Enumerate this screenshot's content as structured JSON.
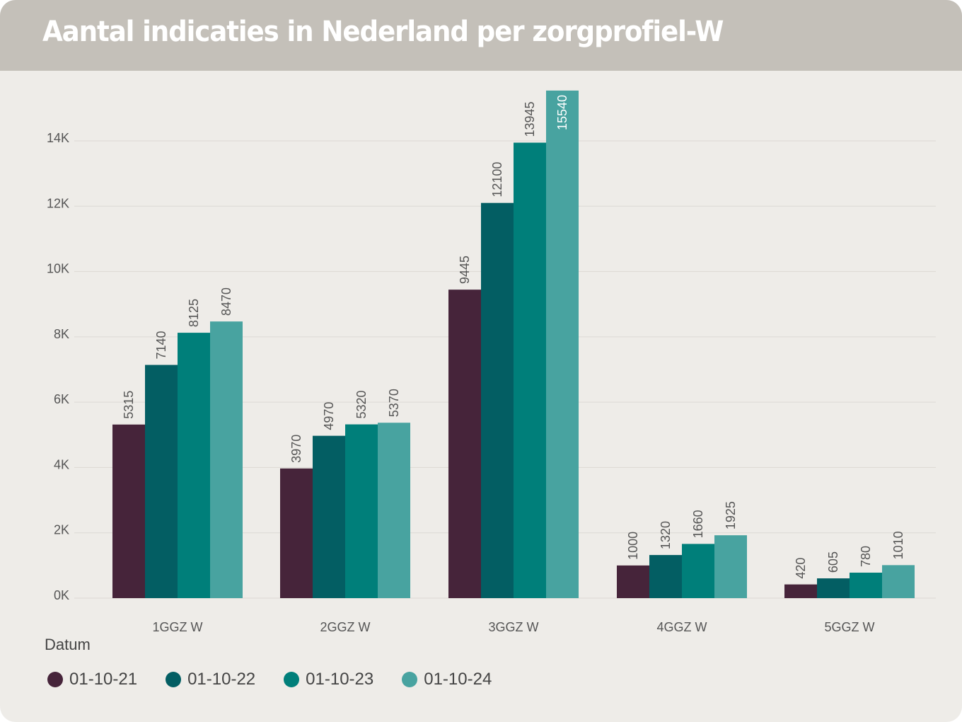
{
  "chart_data": {
    "type": "bar",
    "title": "Aantal indicaties in Nederland per zorgprofiel-W",
    "xlabel": "",
    "ylabel": "",
    "categories": [
      "1GGZ W",
      "2GGZ W",
      "3GGZ W",
      "4GGZ W",
      "5GGZ W"
    ],
    "series": [
      {
        "name": "01-10-21",
        "color": "#46243a",
        "values": [
          5315,
          3970,
          9445,
          1000,
          420
        ]
      },
      {
        "name": "01-10-22",
        "color": "#035e63",
        "values": [
          7140,
          4970,
          12100,
          1320,
          605
        ]
      },
      {
        "name": "01-10-23",
        "color": "#007f7a",
        "values": [
          8125,
          5320,
          13945,
          1660,
          780
        ]
      },
      {
        "name": "01-10-24",
        "color": "#48a3a0",
        "values": [
          8470,
          5370,
          15540,
          1925,
          1010
        ]
      }
    ],
    "ylim": [
      0,
      15540
    ],
    "yticks": [
      0,
      2000,
      4000,
      6000,
      8000,
      10000,
      12000,
      14000
    ],
    "ytick_labels": [
      "0K",
      "2K",
      "4K",
      "6K",
      "8K",
      "10K",
      "12K",
      "14K"
    ],
    "grid": true,
    "data_labels": "rotated-vertical",
    "legend": {
      "title": "Datum",
      "position": "bottom-left"
    }
  },
  "header": {
    "title": "Aantal indicaties in Nederland per zorgprofiel-W"
  },
  "legend": {
    "title": "Datum",
    "items": [
      "01-10-21",
      "01-10-22",
      "01-10-23",
      "01-10-24"
    ]
  }
}
